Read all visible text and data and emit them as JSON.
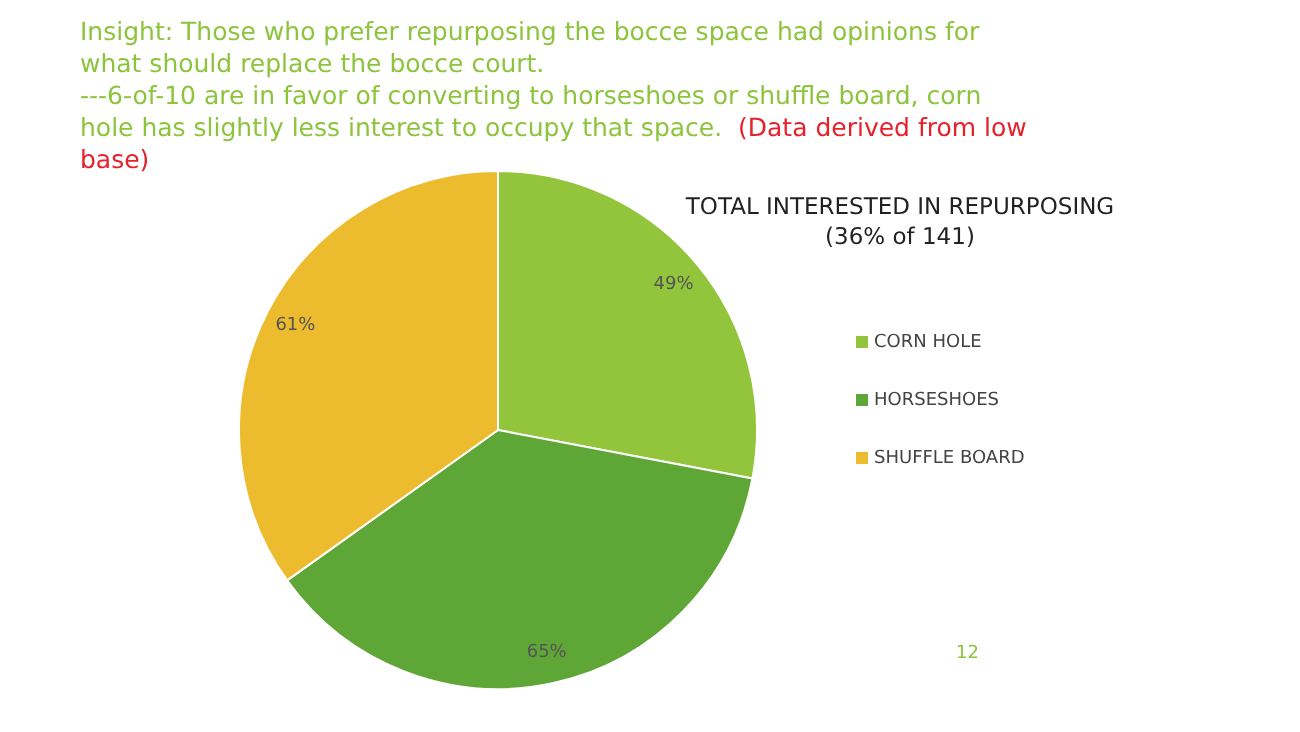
{
  "chart_data": {
    "type": "pie",
    "title": "TOTAL INTERESTED IN REPURPOSING",
    "subtitle": "(36% of 141)",
    "categories": [
      "CORN HOLE",
      "HORSESHOES",
      "SHUFFLE BOARD"
    ],
    "values": [
      49,
      65,
      61
    ],
    "value_labels": [
      "49%",
      "65%",
      "61%"
    ],
    "colors": [
      "#92c43c",
      "#5ea636",
      "#ecbc2e"
    ],
    "legend": "right",
    "annotations": [
      "Insight:  Those who prefer repurposing the bocce space had opinions for what should replace the bocce court.",
      "---6-of-10 are in favor of converting to horseshoes or shuffle board, corn hole has slightly less interest to occupy that space.",
      "(Data derived from low base)",
      "12"
    ]
  }
}
